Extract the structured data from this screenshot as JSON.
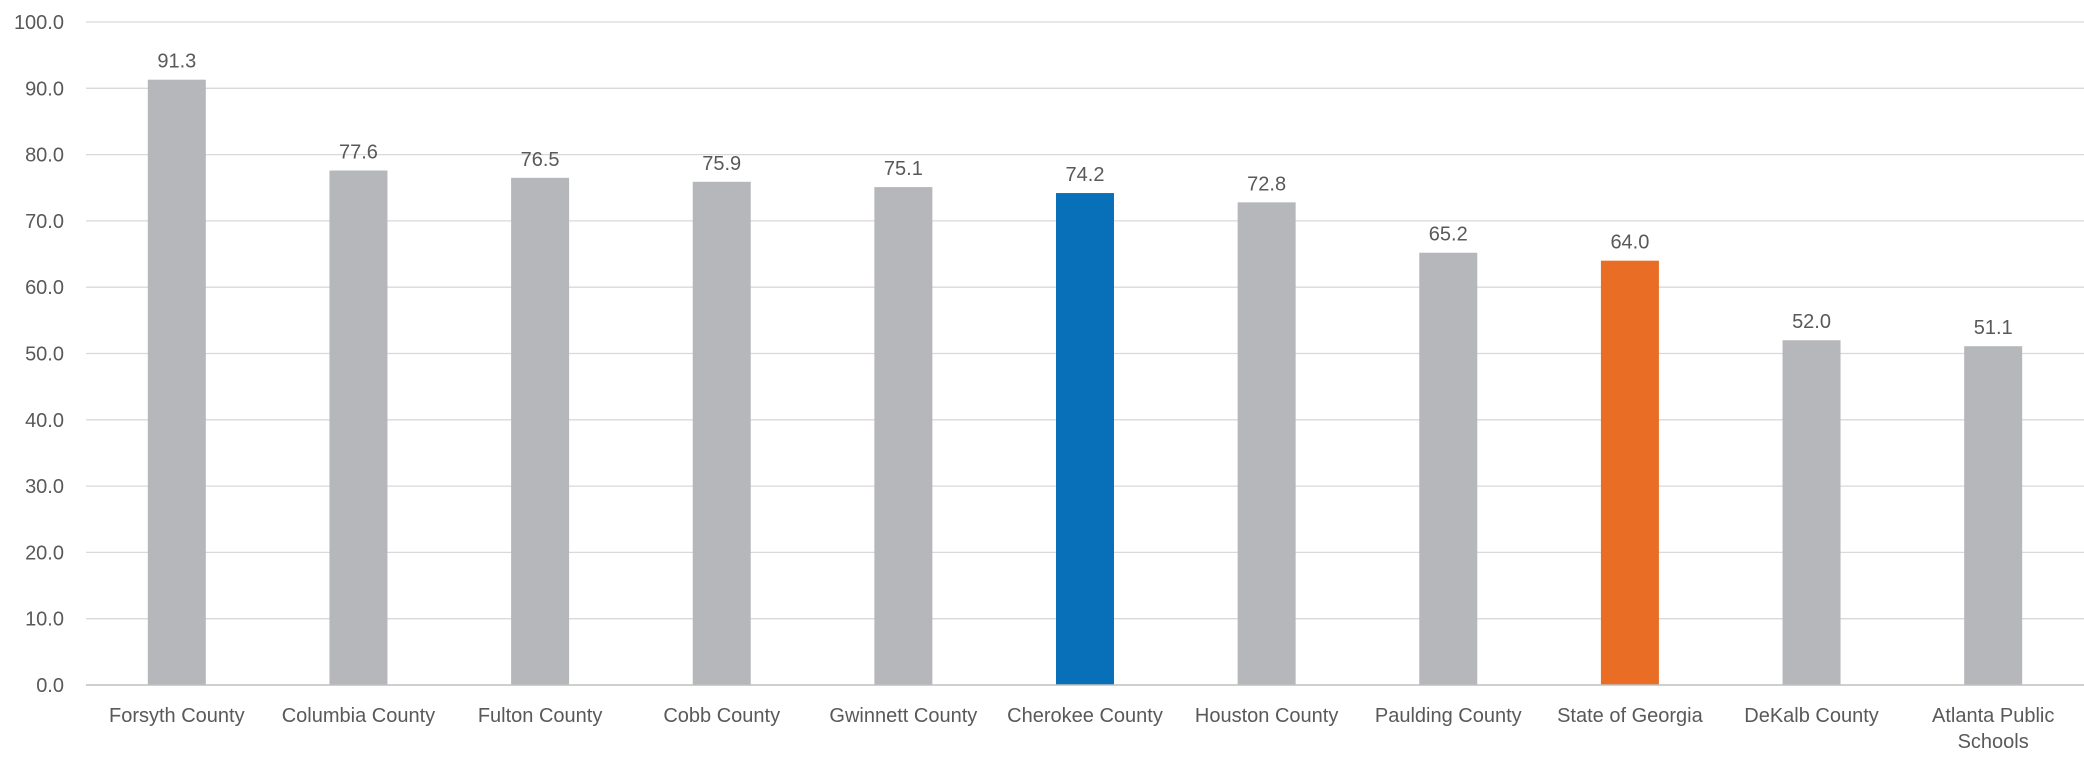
{
  "chart_data": {
    "type": "bar",
    "title": "",
    "xlabel": "",
    "ylabel": "",
    "ylim": [
      0,
      100
    ],
    "yticks": [
      "0.0",
      "10.0",
      "20.0",
      "30.0",
      "40.0",
      "50.0",
      "60.0",
      "70.0",
      "80.0",
      "90.0",
      "100.0"
    ],
    "grid": true,
    "legend": "none",
    "categories": [
      "Forsyth County",
      "Columbia County",
      "Fulton County",
      "Cobb County",
      "Gwinnett County",
      "Cherokee County",
      "Houston County",
      "Paulding County",
      "State of Georgia",
      "DeKalb County",
      "Atlanta Public Schools"
    ],
    "values": [
      91.3,
      77.6,
      76.5,
      75.9,
      75.1,
      74.2,
      72.8,
      65.2,
      64.0,
      52.0,
      51.1
    ],
    "data_labels": [
      "91.3",
      "77.6",
      "76.5",
      "75.9",
      "75.1",
      "74.2",
      "72.8",
      "65.2",
      "64.0",
      "52.0",
      "51.1"
    ],
    "colors": {
      "default": "#B6B7BA",
      "highlight": "#0870B8",
      "state": "#E96D25",
      "grid": "#D9D9D9",
      "axis": "#BFBFBF",
      "text": "#595959"
    },
    "bar_colors": [
      "#B6B7BA",
      "#B6B7BA",
      "#B6B7BA",
      "#B6B7BA",
      "#B6B7BA",
      "#0870B8",
      "#B6B7BA",
      "#B6B7BA",
      "#E96D25",
      "#B6B7BA",
      "#B6B7BA"
    ]
  }
}
